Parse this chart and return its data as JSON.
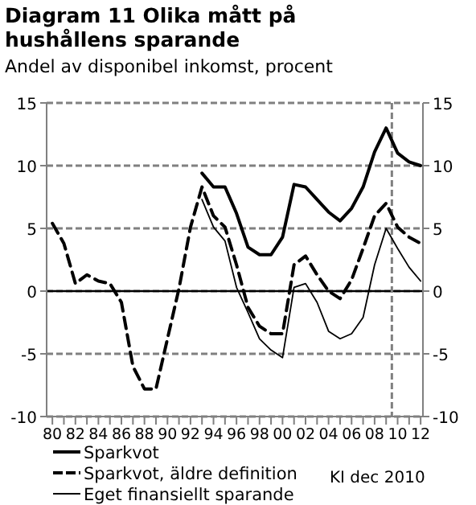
{
  "chart_data": {
    "type": "line",
    "title": "Diagram 11 Olika mått på hushållens sparande",
    "subtitle": "Andel av disponibel inkomst, procent",
    "annotations": [
      "KI dec 2010"
    ],
    "xlim": [
      1979.5,
      2012.2
    ],
    "xticks": [
      {
        "value": 1980,
        "label": "80"
      },
      {
        "value": 1981,
        "label": null
      },
      {
        "value": 1982,
        "label": "82"
      },
      {
        "value": 1983,
        "label": null
      },
      {
        "value": 1984,
        "label": "84"
      },
      {
        "value": 1985,
        "label": null
      },
      {
        "value": 1986,
        "label": "86"
      },
      {
        "value": 1987,
        "label": null
      },
      {
        "value": 1988,
        "label": "88"
      },
      {
        "value": 1989,
        "label": null
      },
      {
        "value": 1990,
        "label": "90"
      },
      {
        "value": 1991,
        "label": null
      },
      {
        "value": 1992,
        "label": "92"
      },
      {
        "value": 1993,
        "label": null
      },
      {
        "value": 1994,
        "label": "94"
      },
      {
        "value": 1995,
        "label": null
      },
      {
        "value": 1996,
        "label": "96"
      },
      {
        "value": 1997,
        "label": null
      },
      {
        "value": 1998,
        "label": "98"
      },
      {
        "value": 1999,
        "label": null
      },
      {
        "value": 2000,
        "label": "00"
      },
      {
        "value": 2001,
        "label": null
      },
      {
        "value": 2002,
        "label": "02"
      },
      {
        "value": 2003,
        "label": null
      },
      {
        "value": 2004,
        "label": "04"
      },
      {
        "value": 2005,
        "label": null
      },
      {
        "value": 2006,
        "label": "06"
      },
      {
        "value": 2007,
        "label": null
      },
      {
        "value": 2008,
        "label": "08"
      },
      {
        "value": 2009,
        "label": null
      },
      {
        "value": 2010,
        "label": "10"
      },
      {
        "value": 2011,
        "label": null
      },
      {
        "value": 2012,
        "label": "12"
      }
    ],
    "ylim": [
      -10,
      15
    ],
    "yticks": [
      -10,
      -5,
      0,
      5,
      10,
      15
    ],
    "y2lim": [
      -10,
      15
    ],
    "y2ticks": [
      -10,
      -5,
      0,
      5,
      10,
      15
    ],
    "grid": "y",
    "legend": "bottom",
    "ref_lines": [
      {
        "axis": "y",
        "value": 0,
        "color": "#000000",
        "line_style": "solid"
      },
      {
        "axis": "x",
        "value": 2009.5,
        "color": "#808080",
        "line_style": "dashed"
      }
    ],
    "series": [
      {
        "name": "Sparkvot",
        "color": "#000000",
        "line_style": "solid",
        "x": [
          1993,
          1994,
          1995,
          1996,
          1997,
          1998,
          1999,
          2000,
          2001,
          2002,
          2003,
          2004,
          2005,
          2006,
          2007,
          2008,
          2009,
          2010,
          2011,
          2012
        ],
        "values": [
          9.4,
          8.3,
          8.3,
          6.2,
          3.5,
          2.9,
          2.9,
          4.3,
          8.5,
          8.3,
          7.3,
          6.3,
          5.6,
          6.6,
          8.3,
          11.1,
          13.0,
          11.0,
          10.3,
          10.0
        ]
      },
      {
        "name": "Sparkvot, äldre definition",
        "color": "#000000",
        "line_style": "dashed",
        "x": [
          1980,
          1981,
          1982,
          1983,
          1984,
          1985,
          1986,
          1987,
          1988,
          1989,
          1990,
          1991,
          1992,
          1993,
          1994,
          1995,
          1996,
          1997,
          1998,
          1999,
          2000,
          2001,
          2002,
          2003,
          2004,
          2005,
          2006,
          2007,
          2008,
          2009,
          2010,
          2011,
          2012
        ],
        "values": [
          5.4,
          3.8,
          0.6,
          1.3,
          0.8,
          0.6,
          -0.9,
          -6.0,
          -7.8,
          -7.8,
          -3.8,
          0.2,
          5.1,
          8.3,
          6.0,
          5.1,
          2.1,
          -1.3,
          -2.8,
          -3.4,
          -3.4,
          2.1,
          2.8,
          1.3,
          0,
          -0.6,
          0.9,
          3.4,
          6.0,
          7.0,
          5.1,
          4.3,
          3.8
        ]
      },
      {
        "name": "Eget finansiellt sparande",
        "color": "#000000",
        "line_style": "solid",
        "x": [
          1993,
          1994,
          1995,
          1996,
          1997,
          1998,
          1999,
          2000,
          2001,
          2002,
          2003,
          2004,
          2005,
          2006,
          2007,
          2008,
          2009,
          2010,
          2011,
          2012
        ],
        "values": [
          7.3,
          5.1,
          4.0,
          0.3,
          -1.7,
          -3.8,
          -4.7,
          -5.3,
          0.3,
          0.6,
          -0.9,
          -3.2,
          -3.8,
          -3.4,
          -2.1,
          2.1,
          5.0,
          3.4,
          1.9,
          0.8
        ]
      }
    ]
  }
}
